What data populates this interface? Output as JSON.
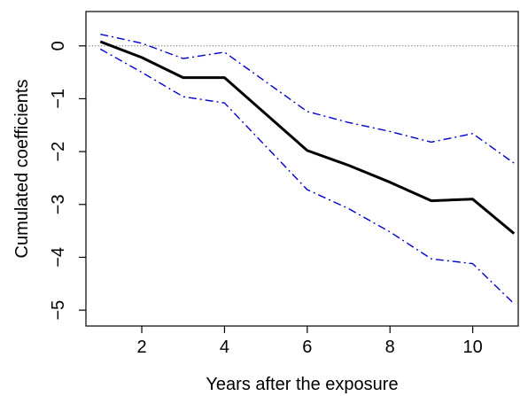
{
  "chart_data": {
    "type": "line",
    "title": "",
    "xlabel": "Years after the exposure",
    "ylabel": "Cumulated coefficients",
    "xlim": [
      0.65,
      11.1
    ],
    "ylim": [
      -5.3,
      0.65
    ],
    "x_ticks": [
      2,
      4,
      6,
      8,
      10
    ],
    "y_ticks": [
      0,
      -1,
      -2,
      -3,
      -4,
      -5
    ],
    "x_tick_labels": [
      "2",
      "4",
      "6",
      "8",
      "10"
    ],
    "y_tick_labels": [
      "0",
      "−1",
      "−2",
      "−3",
      "−4",
      "−5"
    ],
    "grid": false,
    "reference_line": {
      "y": 0,
      "color": "#666666",
      "style": "dotted"
    },
    "series": [
      {
        "role": "estimate",
        "x": [
          1,
          2,
          3,
          4,
          6,
          7,
          8,
          9,
          10,
          11
        ],
        "values": [
          0.08,
          -0.22,
          -0.6,
          -0.6,
          -1.98,
          -2.26,
          -2.58,
          -2.93,
          -2.9,
          -3.55
        ],
        "color": "#000000",
        "style": "solid"
      },
      {
        "role": "upper_bound",
        "x": [
          1,
          2,
          3,
          4,
          6,
          7,
          8,
          9,
          10,
          11
        ],
        "values": [
          0.22,
          0.05,
          -0.24,
          -0.12,
          -1.24,
          -1.45,
          -1.62,
          -1.82,
          -1.66,
          -2.22
        ],
        "color": "#0000cc",
        "style": "dashdot"
      },
      {
        "role": "lower_bound",
        "x": [
          1,
          2,
          3,
          4,
          6,
          7,
          8,
          9,
          10,
          11
        ],
        "values": [
          -0.06,
          -0.5,
          -0.96,
          -1.08,
          -2.72,
          -3.08,
          -3.52,
          -4.03,
          -4.12,
          -4.88
        ],
        "color": "#0000cc",
        "style": "dashdot"
      }
    ]
  }
}
